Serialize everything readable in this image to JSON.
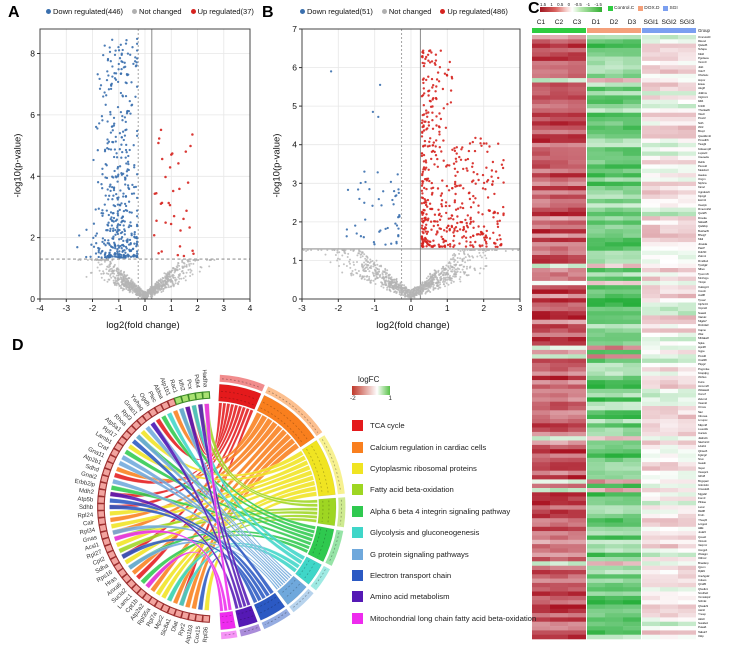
{
  "chart_data": [
    {
      "panel": "A",
      "type": "scatter",
      "subtype": "volcano",
      "legend": [
        {
          "label": "Down regulated(446)",
          "color": "#3a6fae"
        },
        {
          "label": "Not changed",
          "color": "#b0b0b0"
        },
        {
          "label": "Up regulated(37)",
          "color": "#d6231f"
        }
      ],
      "xlabel": "log2(fold change)",
      "ylabel": "-log10(p-value)",
      "xlim": [
        -4,
        4
      ],
      "ylim": [
        0,
        8.8
      ],
      "xticks": [
        -4,
        -3,
        -2,
        -1,
        0,
        1,
        2,
        3,
        4
      ],
      "yticks": [
        0,
        2,
        4,
        6,
        8
      ],
      "significance_line_y": 1.3,
      "significance_line_style": "dashed",
      "fold_change_lines_x": [
        -0.26,
        0.26
      ],
      "points": {
        "down_regulated": {
          "count": 446,
          "color": "#3a6fae",
          "x_center": -1.0,
          "x_spread": 0.45,
          "x_range": [
            -2.6,
            -0.3
          ],
          "y_range": [
            1.35,
            8.5
          ]
        },
        "up_regulated": {
          "count": 37,
          "color": "#d6231f",
          "x_range": [
            0.35,
            2.1
          ],
          "y_range": [
            1.4,
            5.6
          ]
        },
        "not_changed": {
          "count": 850,
          "color": "#b4b4b4",
          "x_range": [
            -3.3,
            3.5
          ],
          "y_range": [
            0,
            1.28
          ]
        }
      },
      "grid": true
    },
    {
      "panel": "B",
      "type": "scatter",
      "subtype": "volcano",
      "legend": [
        {
          "label": "Down regulated(51)",
          "color": "#3a6fae"
        },
        {
          "label": "Not changed",
          "color": "#b0b0b0"
        },
        {
          "label": "Up regulated(486)",
          "color": "#d6231f"
        }
      ],
      "xlabel": "log2(fold change)",
      "ylabel": "-log10(p-value)",
      "xlim": [
        -3,
        3
      ],
      "ylim": [
        0,
        7
      ],
      "xticks": [
        -3,
        -2,
        -1,
        0,
        1,
        2,
        3
      ],
      "yticks": [
        0,
        1,
        2,
        3,
        4,
        5,
        6,
        7
      ],
      "significance_line_y": 1.3,
      "significance_line_style": "solid",
      "fold_change_lines_x": [
        -0.26,
        0.26
      ],
      "points": {
        "down_regulated": {
          "count": 51,
          "color": "#3a6fae",
          "x_range": [
            -2.3,
            -0.3
          ],
          "y_range": [
            1.35,
            5.9
          ],
          "outliers": [
            [
              -2.2,
              5.9
            ],
            [
              -0.85,
              5.55
            ],
            [
              -1.05,
              4.85
            ],
            [
              -0.9,
              4.72
            ]
          ]
        },
        "up_regulated": {
          "count": 486,
          "color": "#d6231f",
          "x_range": [
            0.3,
            2.55
          ],
          "y_range": [
            1.35,
            6.45
          ]
        },
        "not_changed": {
          "count": 900,
          "color": "#b4b4b4",
          "x_range": [
            -2.95,
            2.95
          ],
          "y_range": [
            0,
            1.28
          ]
        }
      },
      "grid": true
    },
    {
      "panel": "C",
      "type": "heatmap",
      "colorbar": {
        "ticks": [
          "1.5",
          "1",
          "0.5",
          "0",
          "-0.5",
          "-1",
          "-1.5"
        ],
        "high_color": "#a01822",
        "mid_color": "#ffffff",
        "low_color": "#2fae2f"
      },
      "group_legend": [
        {
          "label": "Control.C",
          "color": "#2ecc40"
        },
        {
          "label": "DOX.D",
          "color": "#f4a07a"
        },
        {
          "label": "SGI",
          "color": "#7b9ff0"
        }
      ],
      "columns": [
        "C1",
        "C2",
        "C3",
        "D1",
        "D2",
        "D3",
        "SGI1",
        "SGI2",
        "SGI3"
      ],
      "column_groups": [
        {
          "name": "Control",
          "columns": [
            "C1",
            "C2",
            "C3"
          ],
          "color": "#2ecc40"
        },
        {
          "name": "DOX",
          "columns": [
            "D1",
            "D2",
            "D3"
          ],
          "color": "#f4a07a"
        },
        {
          "name": "SGI",
          "columns": [
            "SGI1",
            "SGI2",
            "SGI3"
          ],
          "color": "#7b9ff0"
        }
      ],
      "annotation_label": "Group",
      "row_count": 140,
      "row_labels_legible": false,
      "value_range": [
        -1.5,
        1.5
      ],
      "expression_pattern": {
        "control_columns": "high, red, ~0.55 to 1.5",
        "dox_columns": "low, green, ~-1.5 to -0.35",
        "sgi_columns": "intermediate, pale pink to white, ~-0.15 to 0.5",
        "inverted_row_fraction": 0.07,
        "sgi_green_row_fraction": 0.13
      }
    },
    {
      "panel": "D",
      "type": "chord",
      "logfc_legend": {
        "title": "logFC",
        "min": "-2",
        "max": "1",
        "min_color": "#c0392b",
        "mid_color": "#ffffff",
        "max_color": "#58c148"
      },
      "pathways": [
        {
          "label": "TCA cycle",
          "color": "#e41a1c",
          "span": 20
        },
        {
          "label": "Calcium regulation in cardiac cells",
          "color": "#f97f1e",
          "span": 31
        },
        {
          "label": "Cytoplasmic ribosomal proteins",
          "color": "#f0e422",
          "span": 27
        },
        {
          "label": "Fatty acid beta-oxidation",
          "color": "#9ed622",
          "span": 13
        },
        {
          "label": "Alpha 6 beta 4 integrin signaling pathway",
          "color": "#2fc94f",
          "span": 16
        },
        {
          "label": "Glycolysis and gluconeogenesis",
          "color": "#3fd6c8",
          "span": 11
        },
        {
          "label": "G protein signaling pathways",
          "color": "#6fa8dc",
          "span": 12
        },
        {
          "label": "Electron transport chain",
          "color": "#2b59c3",
          "span": 13
        },
        {
          "label": "Amino acid metabolism",
          "color": "#5519b5",
          "span": 9
        },
        {
          "label": "Mitochondrial long chain fatty acid beta-oxidation",
          "color": "#ee2bee",
          "span": 7
        }
      ],
      "genes": [
        "Rpl36",
        "Cox15",
        "Atp1b3",
        "Ryr2",
        "Dlat",
        "Slc8a1",
        "Mpc2",
        "Rpl7a",
        "Rpl35a",
        "Atp2a2",
        "Cpt1b",
        "Lamc1",
        "Sucla2",
        "Anxa6",
        "Hras",
        "Rps16",
        "Sdha",
        "Cpt2",
        "Rpl27",
        "Acsl1",
        "Gnas",
        "Rpl34",
        "Calr",
        "Rpl24",
        "Sdhb",
        "Atp5b",
        "Mdh2",
        "Erbb2ip",
        "Gnai2",
        "Sdhd",
        "Atp2b1",
        "Gna11",
        "Craf",
        "Lamb1",
        "Rpl17",
        "Atp5a1",
        "Rhoa",
        "Rpl3",
        "Gnao1",
        "Ywhaq",
        "Ogdh",
        "Plec",
        "Aldoa",
        "Atp1b1",
        "Rac1",
        "Idh2",
        "Pcx",
        "Pdk4",
        "Hadha"
      ],
      "up_regulated_genes": [
        "Rac1",
        "Idh2",
        "Pcx",
        "Pdk4",
        "Hadha"
      ],
      "gene_marker": {
        "down_fill": "#f2a49f",
        "down_border": "#9c2f2f",
        "up_fill": "#a9e271",
        "up_border": "#3c8a28"
      }
    }
  ]
}
